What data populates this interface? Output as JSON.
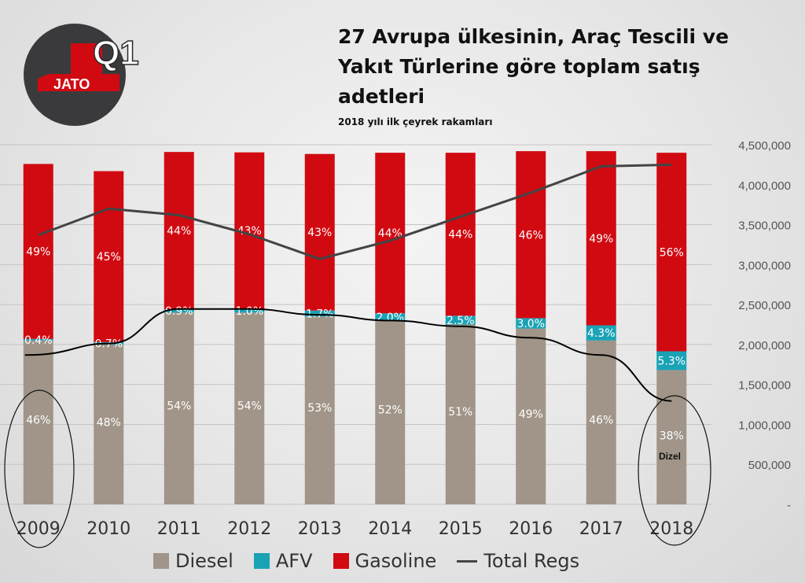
{
  "header": {
    "title": "27 Avrupa ülkesinin, Araç Tescili ve Yakıt Türlerine göre toplam satış adetleri",
    "subtitle": "2018 yılı ilk çeyrek rakamları"
  },
  "logo": {
    "brand": "JATO",
    "quarter": "Q1"
  },
  "annotation": {
    "dizel": "Dizel"
  },
  "colors": {
    "diesel": "#a09588",
    "afv": "#1aa3b5",
    "gasoline": "#d10a12",
    "total": "#444444",
    "diesel_trend": "#000000"
  },
  "chart_data": {
    "type": "bar",
    "stacked": true,
    "categories": [
      "2009",
      "2010",
      "2011",
      "2012",
      "2013",
      "2014",
      "2015",
      "2016",
      "2017",
      "2018"
    ],
    "ylim": [
      0,
      4500000
    ],
    "yticks": [
      "4,500,000",
      "4,000,000",
      "3,500,000",
      "3,000,000",
      "2,500,000",
      "2,000,000",
      "1,500,000",
      "1,000,000",
      "500,000",
      "-"
    ],
    "series": [
      {
        "name": "Diesel",
        "values": [
          2050000,
          2000000,
          2400000,
          2400000,
          2350000,
          2300000,
          2250000,
          2200000,
          2050000,
          1680000
        ],
        "labels": [
          "46%",
          "48%",
          "54%",
          "54%",
          "53%",
          "52%",
          "51%",
          "49%",
          "46%",
          "38%"
        ]
      },
      {
        "name": "AFV",
        "values": [
          20000,
          30000,
          40000,
          45000,
          75000,
          90000,
          110000,
          130000,
          190000,
          235000
        ],
        "labels": [
          "0.4%",
          "0.7%",
          "0.9%",
          "1.0%",
          "1.7%",
          "2.0%",
          "2.5%",
          "3.0%",
          "4.3%",
          "5.3%"
        ]
      },
      {
        "name": "Gasoline",
        "values": [
          2190000,
          2140000,
          1970000,
          1960000,
          1960000,
          2010000,
          2040000,
          2090000,
          2180000,
          2485000
        ],
        "labels": [
          "49%",
          "45%",
          "44%",
          "43%",
          "43%",
          "44%",
          "44%",
          "46%",
          "49%",
          "56%"
        ]
      },
      {
        "name": "Total Regs",
        "type": "line",
        "values": [
          3370000,
          3700000,
          3620000,
          3380000,
          3070000,
          3300000,
          3600000,
          3900000,
          4230000,
          4250000
        ]
      }
    ],
    "legend": "bottom",
    "grid": true
  }
}
